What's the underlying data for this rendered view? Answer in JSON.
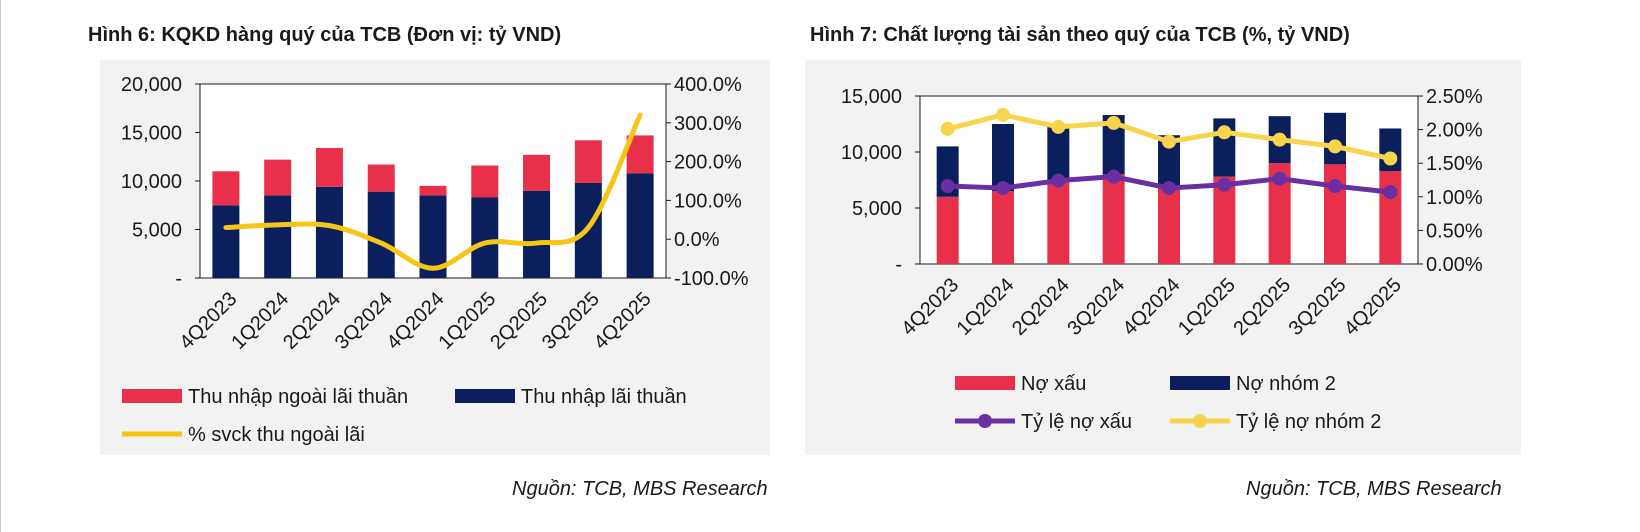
{
  "fig6": {
    "title": "Hình 6: KQKD hàng quý của TCB (Đơn vị: tỷ VND)",
    "source": "Nguồn: TCB, MBS Research"
  },
  "fig7": {
    "title": "Hình 7: Chất lượng tài sản theo quý của TCB (%, tỷ VND)",
    "source": "Nguồn: TCB, MBS Research"
  },
  "colors": {
    "red": "#e8304a",
    "navy": "#0b1f5c",
    "gold": "#f5c518",
    "purple": "#6a2fa0",
    "lightgold": "#f7d44c"
  },
  "chart_data": [
    {
      "type": "bar",
      "stacked": true,
      "categories": [
        "4Q2023",
        "1Q2024",
        "2Q2024",
        "3Q2024",
        "4Q2024",
        "1Q2025",
        "2Q2025",
        "3Q2025",
        "4Q2025"
      ],
      "series": [
        {
          "name": "Thu nhập lãi thuần",
          "axis": "left",
          "color": "#0b1f5c",
          "values": [
            7500,
            8500,
            9400,
            8900,
            8500,
            8300,
            9000,
            9800,
            10800
          ]
        },
        {
          "name": "Thu nhập ngoài lãi thuần",
          "axis": "left",
          "color": "#e8304a",
          "values": [
            3500,
            3700,
            4000,
            2800,
            1000,
            3300,
            3700,
            4400,
            3900
          ]
        },
        {
          "name": "% svck thu ngoài lãi",
          "type": "line",
          "axis": "right",
          "color": "#f5c518",
          "values": [
            30,
            37,
            35,
            -10,
            -75,
            -10,
            -10,
            30,
            320
          ]
        }
      ],
      "y_left": {
        "min": 0,
        "max": 20000,
        "ticks": [
          "-",
          "5,000",
          "10,000",
          "15,000",
          "20,000"
        ]
      },
      "y_right": {
        "min": -100,
        "max": 400,
        "ticks": [
          "-100.0%",
          "0.0%",
          "100.0%",
          "200.0%",
          "300.0%",
          "400.0%"
        ]
      },
      "legend": [
        "Thu nhập ngoài lãi thuần",
        "Thu nhập lãi thuần",
        "% svck thu ngoài lãi"
      ],
      "legend_position": "bottom"
    },
    {
      "type": "bar",
      "stacked": true,
      "categories": [
        "4Q2023",
        "1Q2024",
        "2Q2024",
        "3Q2024",
        "4Q2024",
        "1Q2025",
        "2Q2025",
        "3Q2025",
        "4Q2025"
      ],
      "series": [
        {
          "name": "Nợ xấu",
          "axis": "left",
          "color": "#e8304a",
          "values": [
            6000,
            6500,
            7500,
            8000,
            7000,
            7800,
            9000,
            8900,
            8300
          ]
        },
        {
          "name": "Nợ nhóm 2",
          "axis": "left",
          "color": "#0b1f5c",
          "values": [
            4500,
            6000,
            5000,
            5300,
            4500,
            5200,
            4200,
            4600,
            3800
          ]
        },
        {
          "name": "Tỷ lệ nợ xấu",
          "type": "line",
          "axis": "right",
          "color": "#6a2fa0",
          "values": [
            1.16,
            1.13,
            1.24,
            1.3,
            1.13,
            1.18,
            1.27,
            1.16,
            1.07
          ]
        },
        {
          "name": "Tỷ lệ nợ nhóm 2",
          "type": "line",
          "axis": "right",
          "color": "#f7d44c",
          "values": [
            2.01,
            2.22,
            2.04,
            2.1,
            1.82,
            1.96,
            1.85,
            1.75,
            1.57
          ]
        }
      ],
      "y_left": {
        "min": 0,
        "max": 15000,
        "ticks": [
          "-",
          "5,000",
          "10,000",
          "15,000"
        ]
      },
      "y_right": {
        "min": 0,
        "max": 2.5,
        "ticks": [
          "0.00%",
          "0.50%",
          "1.00%",
          "1.50%",
          "2.00%",
          "2.50%"
        ]
      },
      "legend": [
        "Nợ xấu",
        "Nợ nhóm 2",
        "Tỷ lệ nợ xấu",
        "Tỷ lệ nợ nhóm 2"
      ],
      "legend_position": "bottom"
    }
  ]
}
